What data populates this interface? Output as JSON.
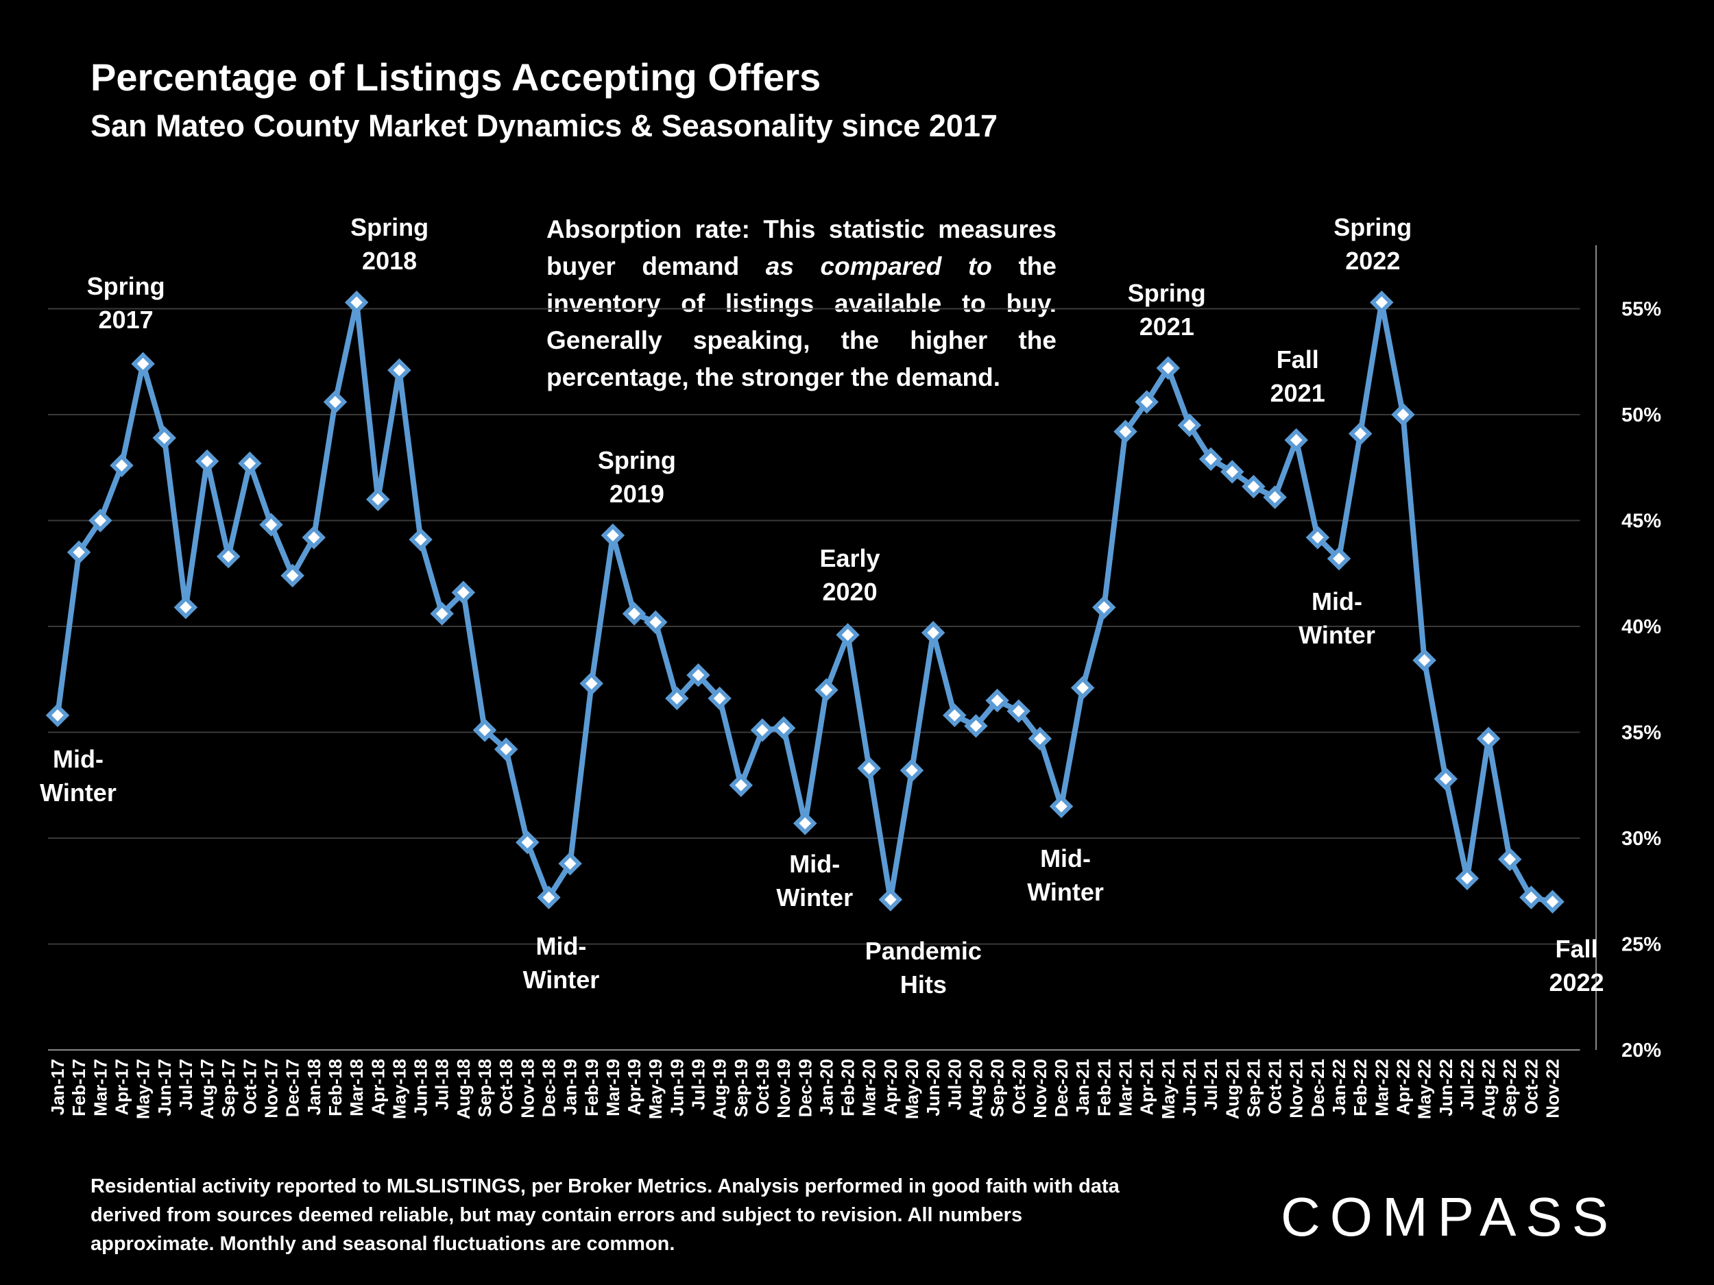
{
  "header": {
    "title": "Percentage of Listings Accepting Offers",
    "subtitle": "San Mateo County Market Dynamics & Seasonality since 2017"
  },
  "note": {
    "before": "Absorption rate: This statistic measures buyer demand ",
    "emphasis": "as compared to",
    "after": " the inventory of listings available to buy. Generally speaking, the higher the percentage, the stronger the demand."
  },
  "footer": {
    "text": "Residential activity reported to MLSLISTINGS, per Broker Metrics. Analysis performed in good faith with data derived from sources deemed reliable, but may contain errors and subject to revision. All numbers approximate. Monthly and seasonal fluctuations are common."
  },
  "logo": {
    "text": "COMPASS"
  },
  "colors": {
    "background": "#000000",
    "line": "#5b9bd5",
    "marker_fill": "#ffffff",
    "grid": "#3a3a3a",
    "text": "#ffffff"
  },
  "chart_data": {
    "type": "line",
    "title": "Percentage of Listings Accepting Offers",
    "subtitle": "San Mateo County Market Dynamics & Seasonality since 2017",
    "y_unit": "%",
    "ylim": [
      20,
      58
    ],
    "yticks": [
      20,
      25,
      30,
      35,
      40,
      45,
      50,
      55
    ],
    "ytick_labels": [
      "20%",
      "25%",
      "30%",
      "35%",
      "40%",
      "45%",
      "50%",
      "55%"
    ],
    "y_axis_position": "right",
    "grid": true,
    "legend": "none",
    "categories": [
      "Jan-17",
      "Feb-17",
      "Mar-17",
      "Apr-17",
      "May-17",
      "Jun-17",
      "Jul-17",
      "Aug-17",
      "Sep-17",
      "Oct-17",
      "Nov-17",
      "Dec-17",
      "Jan-18",
      "Feb-18",
      "Mar-18",
      "Apr-18",
      "May-18",
      "Jun-18",
      "Jul-18",
      "Aug-18",
      "Sep-18",
      "Oct-18",
      "Nov-18",
      "Dec-18",
      "Jan-19",
      "Feb-19",
      "Mar-19",
      "Apr-19",
      "May-19",
      "Jun-19",
      "Jul-19",
      "Aug-19",
      "Sep-19",
      "Oct-19",
      "Nov-19",
      "Dec-19",
      "Jan-20",
      "Feb-20",
      "Mar-20",
      "Apr-20",
      "May-20",
      "Jun-20",
      "Jul-20",
      "Aug-20",
      "Sep-20",
      "Oct-20",
      "Nov-20",
      "Dec-20",
      "Jan-21",
      "Feb-21",
      "Mar-21",
      "Apr-21",
      "May-21",
      "Jun-21",
      "Jul-21",
      "Aug-21",
      "Sep-21",
      "Oct-21",
      "Nov-21",
      "Dec-21",
      "Jan-22",
      "Feb-22",
      "Mar-22",
      "Apr-22",
      "May-22",
      "Jun-22",
      "Jul-22",
      "Aug-22",
      "Sep-22",
      "Oct-22",
      "Nov-22"
    ],
    "series": [
      {
        "values": [
          35.8,
          43.5,
          45.0,
          47.6,
          52.4,
          48.9,
          40.9,
          47.8,
          43.3,
          47.7,
          44.8,
          42.4,
          44.2,
          50.6,
          55.3,
          46.0,
          52.1,
          44.1,
          40.6,
          41.6,
          35.1,
          34.2,
          29.8,
          27.2,
          28.8,
          37.3,
          44.3,
          40.6,
          40.2,
          36.6,
          37.7,
          36.6,
          32.5,
          35.1,
          35.2,
          30.7,
          37.0,
          39.6,
          33.3,
          27.1,
          33.2,
          39.7,
          35.8,
          35.3,
          36.5,
          36.0,
          34.7,
          31.5,
          37.1,
          40.9,
          49.2,
          50.6,
          52.2,
          49.5,
          47.9,
          47.3,
          46.6,
          46.1,
          48.8,
          44.2,
          43.2,
          49.1,
          55.3,
          50.0,
          38.4,
          32.8,
          28.1,
          34.7,
          29.0,
          27.2,
          27.0
        ]
      }
    ],
    "annotations": [
      {
        "lines": [
          "Spring",
          "2017"
        ],
        "month": "May-17"
      },
      {
        "lines": [
          "Spring",
          "2018"
        ],
        "month": "Mar-18"
      },
      {
        "lines": [
          "Spring",
          "2019"
        ],
        "month": "Mar-19"
      },
      {
        "lines": [
          "Early",
          "2020"
        ],
        "month": "Feb-20"
      },
      {
        "lines": [
          "Spring",
          "2021"
        ],
        "month": "May-21"
      },
      {
        "lines": [
          "Fall",
          "2021"
        ],
        "month": "Nov-21"
      },
      {
        "lines": [
          "Spring",
          "2022"
        ],
        "month": "Mar-22"
      },
      {
        "lines": [
          "Mid-",
          "Winter"
        ],
        "month": "Jan-17"
      },
      {
        "lines": [
          "Mid-",
          "Winter"
        ],
        "month": "Dec-18"
      },
      {
        "lines": [
          "Mid-",
          "Winter"
        ],
        "month": "Dec-19"
      },
      {
        "lines": [
          "Pandemic",
          "Hits"
        ],
        "month": "Apr-20"
      },
      {
        "lines": [
          "Mid-",
          "Winter"
        ],
        "month": "Dec-20"
      },
      {
        "lines": [
          "Mid-",
          "Winter"
        ],
        "month": "Jan-22"
      },
      {
        "lines": [
          "Fall",
          "2022"
        ],
        "month": "Nov-22"
      }
    ]
  }
}
